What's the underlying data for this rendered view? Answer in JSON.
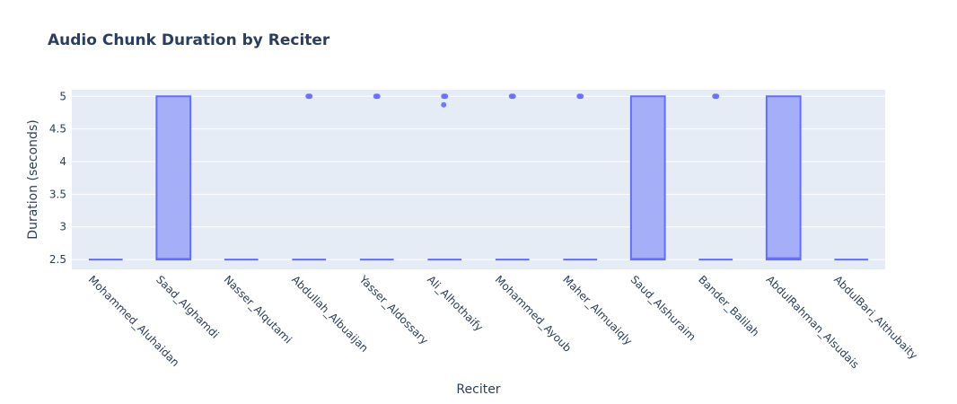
{
  "chart_data": {
    "type": "box",
    "title": "Audio Chunk Duration by Reciter",
    "xlabel": "Reciter",
    "ylabel": "Duration (seconds)",
    "ylim": [
      2.35,
      5.1
    ],
    "yticks": [
      "2.5",
      "3",
      "3.5",
      "4",
      "4.5",
      "5"
    ],
    "grid": true,
    "legend": "none",
    "colors": {
      "plot_bg": "#e5ecf6",
      "box_fill": "#a5aff7",
      "box_line": "#636efa",
      "grid": "#ffffff",
      "text": "#2a3f5f"
    },
    "categories": [
      "Mohammed_Aluhaidan",
      "Saad_Alghamdi",
      "Nasser_Alqutami",
      "Abdullah_Albuaijan",
      "Yasser_Aldossary",
      "Ali_Alhothaify",
      "Mohammed_Ayoub",
      "Maher_Almuaiqly",
      "Saud_Alshuraim",
      "Bander_Balilah",
      "AbdulRahman_Alsudais",
      "AbdulBari_Althubaity"
    ],
    "boxes": [
      {
        "q1": 2.5,
        "median": 2.5,
        "q3": 2.5,
        "min": 2.5,
        "max": 2.5,
        "outliers": []
      },
      {
        "q1": 2.5,
        "median": 2.51,
        "q3": 5.0,
        "min": 2.5,
        "max": 5.0,
        "outliers": []
      },
      {
        "q1": 2.5,
        "median": 2.5,
        "q3": 2.5,
        "min": 2.5,
        "max": 2.5,
        "outliers": []
      },
      {
        "q1": 2.5,
        "median": 2.5,
        "q3": 2.5,
        "min": 2.5,
        "max": 2.5,
        "outliers": [
          5.0,
          5.0
        ]
      },
      {
        "q1": 2.5,
        "median": 2.5,
        "q3": 2.5,
        "min": 2.5,
        "max": 2.5,
        "outliers": [
          5.0,
          5.0
        ]
      },
      {
        "q1": 2.5,
        "median": 2.5,
        "q3": 2.5,
        "min": 2.5,
        "max": 2.5,
        "outliers": [
          5.0,
          5.0,
          4.87
        ]
      },
      {
        "q1": 2.5,
        "median": 2.5,
        "q3": 2.5,
        "min": 2.5,
        "max": 2.5,
        "outliers": [
          5.0,
          5.0
        ]
      },
      {
        "q1": 2.5,
        "median": 2.5,
        "q3": 2.5,
        "min": 2.5,
        "max": 2.5,
        "outliers": [
          5.0,
          5.0
        ]
      },
      {
        "q1": 2.5,
        "median": 2.51,
        "q3": 5.0,
        "min": 2.5,
        "max": 5.0,
        "outliers": []
      },
      {
        "q1": 2.5,
        "median": 2.5,
        "q3": 2.5,
        "min": 2.5,
        "max": 2.5,
        "outliers": [
          5.0,
          5.0
        ]
      },
      {
        "q1": 2.5,
        "median": 2.52,
        "q3": 5.0,
        "min": 2.5,
        "max": 5.0,
        "outliers": []
      },
      {
        "q1": 2.5,
        "median": 2.5,
        "q3": 2.5,
        "min": 2.5,
        "max": 2.5,
        "outliers": []
      }
    ]
  }
}
